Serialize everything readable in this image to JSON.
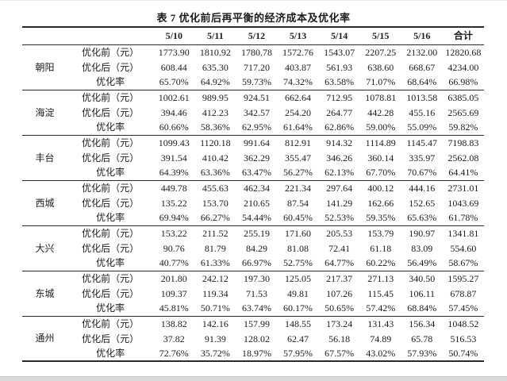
{
  "page": {
    "title": "表 7 优化前后再平衡的经济成本及优化率"
  },
  "table": {
    "column_headers": [
      "5/10",
      "5/11",
      "5/12",
      "5/13",
      "5/14",
      "5/15",
      "5/16",
      "合计"
    ],
    "row_labels": [
      "优化前（元）",
      "优化后（元）",
      "优化率"
    ],
    "groups": [
      {
        "district": "朝阳",
        "rows": [
          [
            "1773.90",
            "1810.92",
            "1780.78",
            "1572.76",
            "1543.07",
            "2207.25",
            "2132.00",
            "12820.68"
          ],
          [
            "608.44",
            "635.30",
            "717.20",
            "403.87",
            "561.93",
            "638.60",
            "668.67",
            "4234.00"
          ],
          [
            "65.70%",
            "64.92%",
            "59.73%",
            "74.32%",
            "63.58%",
            "71.07%",
            "68.64%",
            "66.98%"
          ]
        ]
      },
      {
        "district": "海淀",
        "rows": [
          [
            "1002.61",
            "989.95",
            "924.51",
            "662.64",
            "712.95",
            "1078.81",
            "1013.58",
            "6385.05"
          ],
          [
            "394.46",
            "412.23",
            "342.57",
            "254.20",
            "264.77",
            "442.28",
            "455.16",
            "2565.69"
          ],
          [
            "60.66%",
            "58.36%",
            "62.95%",
            "61.64%",
            "62.86%",
            "59.00%",
            "55.09%",
            "59.82%"
          ]
        ]
      },
      {
        "district": "丰台",
        "rows": [
          [
            "1099.43",
            "1120.18",
            "991.64",
            "812.91",
            "914.32",
            "1114.89",
            "1145.47",
            "7198.83"
          ],
          [
            "391.54",
            "410.42",
            "362.29",
            "355.47",
            "346.26",
            "360.14",
            "335.97",
            "2562.08"
          ],
          [
            "64.39%",
            "63.36%",
            "63.47%",
            "56.27%",
            "62.13%",
            "67.70%",
            "70.67%",
            "64.41%"
          ]
        ]
      },
      {
        "district": "西城",
        "rows": [
          [
            "449.78",
            "455.63",
            "462.34",
            "221.34",
            "297.64",
            "400.12",
            "444.16",
            "2731.01"
          ],
          [
            "135.22",
            "153.70",
            "210.65",
            "87.54",
            "141.29",
            "162.66",
            "152.65",
            "1043.69"
          ],
          [
            "69.94%",
            "66.27%",
            "54.44%",
            "60.45%",
            "52.53%",
            "59.35%",
            "65.63%",
            "61.78%"
          ]
        ]
      },
      {
        "district": "大兴",
        "rows": [
          [
            "153.22",
            "211.52",
            "255.19",
            "171.60",
            "205.53",
            "153.79",
            "190.97",
            "1341.81"
          ],
          [
            "90.76",
            "81.79",
            "84.29",
            "81.08",
            "72.41",
            "61.18",
            "83.09",
            "554.60"
          ],
          [
            "40.77%",
            "61.33%",
            "66.97%",
            "52.75%",
            "64.77%",
            "60.22%",
            "56.49%",
            "58.67%"
          ]
        ]
      },
      {
        "district": "东城",
        "rows": [
          [
            "201.80",
            "242.12",
            "197.30",
            "125.05",
            "217.37",
            "271.13",
            "340.50",
            "1595.27"
          ],
          [
            "109.37",
            "119.34",
            "71.53",
            "49.81",
            "107.26",
            "115.45",
            "106.11",
            "678.87"
          ],
          [
            "45.81%",
            "50.71%",
            "63.74%",
            "60.17%",
            "50.65%",
            "57.42%",
            "68.84%",
            "57.45%"
          ]
        ]
      },
      {
        "district": "通州",
        "rows": [
          [
            "138.82",
            "142.16",
            "157.99",
            "148.55",
            "173.24",
            "131.43",
            "156.34",
            "1048.52"
          ],
          [
            "37.82",
            "91.39",
            "128.02",
            "62.47",
            "56.18",
            "74.89",
            "65.78",
            "516.53"
          ],
          [
            "72.76%",
            "35.72%",
            "18.97%",
            "57.95%",
            "67.57%",
            "43.02%",
            "57.93%",
            "50.74%"
          ]
        ]
      }
    ]
  },
  "colors": {
    "text": "#1c1c1c",
    "rule": "#2b2b2b",
    "bottom_edge": "#d9d9d9"
  }
}
